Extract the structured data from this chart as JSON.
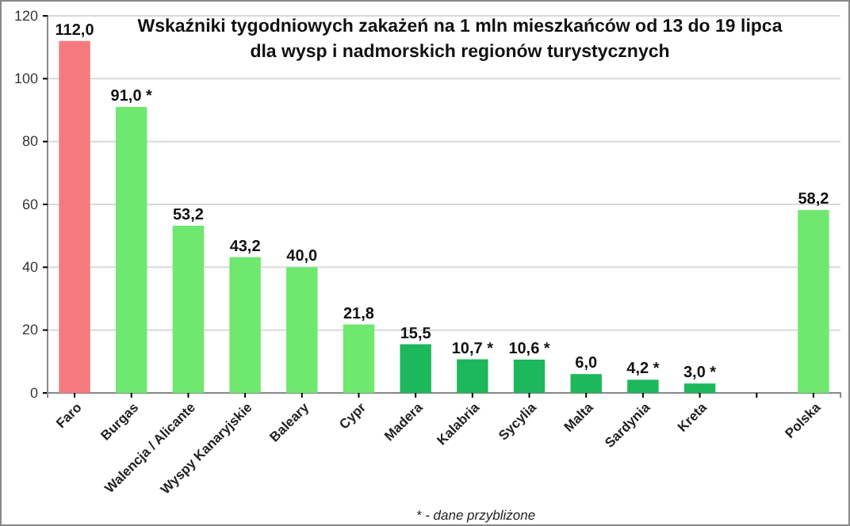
{
  "chart_data": {
    "type": "bar",
    "title": "Wskaźniki tygodniowych zakażeń na 1 mln mieszkańców od 13 do 19 lipca\ndla wysp i nadmorskich regionów turystycznych",
    "categories": [
      "Faro",
      "Burgas",
      "Walencja / Alicante",
      "Wyspy Kanaryjskie",
      "Baleary",
      "Cypr",
      "Madera",
      "Kalabria",
      "Sycylia",
      "Malta",
      "Sardynia",
      "Kreta",
      null,
      "Polska"
    ],
    "values": [
      112.0,
      91.0,
      53.2,
      43.2,
      40.0,
      21.8,
      15.5,
      10.7,
      10.6,
      6.0,
      4.2,
      3.0,
      null,
      58.2
    ],
    "value_labels": [
      "112,0",
      "91,0 *",
      "53,2",
      "43,2",
      "40,0",
      "21,8",
      "15,5",
      "10,7 *",
      "10,6 *",
      "6,0",
      "4,2 *",
      "3,0 *",
      null,
      "58,2"
    ],
    "colors": [
      "#f47a80",
      "#6ee86e",
      "#6ee86e",
      "#6ee86e",
      "#6ee86e",
      "#6ee86e",
      "#1db85c",
      "#1db85c",
      "#1db85c",
      "#1db85c",
      "#1db85c",
      "#1db85c",
      null,
      "#6ee86e"
    ],
    "ylim": [
      0,
      120
    ],
    "yticks": [
      0,
      20,
      40,
      60,
      80,
      100,
      120
    ],
    "grid": "y",
    "annotations": [
      "* - dane przybliżone"
    ]
  }
}
